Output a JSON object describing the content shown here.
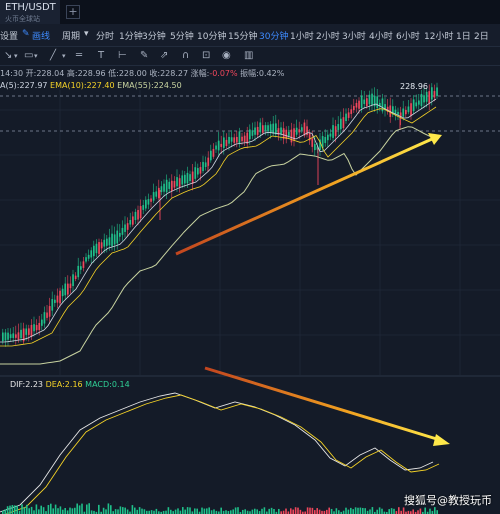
{
  "tab": {
    "title": "ETH/USDT",
    "subtitle": "火币全球站",
    "add_icon": "+"
  },
  "toolbar": {
    "left_items": [
      "设置",
      "画线"
    ],
    "period_label": "周期",
    "intervals": [
      "分时",
      "1分钟",
      "3分钟",
      "5分钟",
      "10分钟",
      "15分钟",
      "30分钟",
      "1小时",
      "2小时",
      "3小时",
      "4小时",
      "6小时",
      "12小时",
      "1日",
      "2日"
    ],
    "active_interval": "30分钟"
  },
  "ohlc": {
    "time": "14:30",
    "open_label": "开:",
    "open": "228.04",
    "high_label": "高:",
    "high": "228.96",
    "low_label": "低:",
    "low": "228.00",
    "close_label": "收:",
    "close": "228.27",
    "chg_label": "涨幅:",
    "chg": "-0.07%",
    "amp_label": "振幅:",
    "amp": "0.42%"
  },
  "ema": {
    "ema5": "A(5):227.97",
    "ema10": "EMA(10):227.40",
    "ema55": "EMA(55):224.50",
    "ema5_color": "#cfd6e2",
    "ema10_color": "#f5d327",
    "ema55_color": "#c8d3a0"
  },
  "price_label": "228.96",
  "macd": {
    "dif": "DIF:2.23",
    "dea": "DEA:2.16",
    "macd": "MACD:0.14",
    "dif_color": "#e7e7e7",
    "dea_color": "#f5d327",
    "macd_color": "#2fd096"
  },
  "colors": {
    "up": "#1fc08a",
    "down": "#f0475c",
    "accent": "#3e8bff",
    "background": "#141b28"
  },
  "watermark": "搜狐号@教授玩币"
}
